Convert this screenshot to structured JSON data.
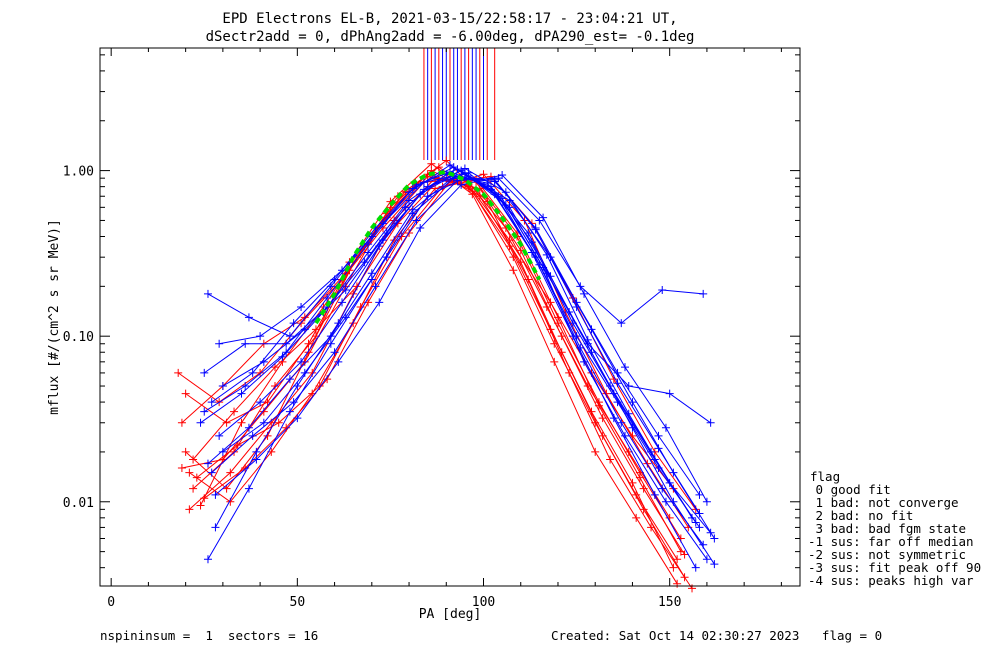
{
  "title_line1": "EPD Electrons EL-B, 2021-03-15/22:58:17 - 23:04:21 UT,",
  "title_line2": "dSectr2add = 0, dPhAng2add = -6.00deg, dPA290_est=  -0.1deg",
  "footer": {
    "left": "nspininsum =  1  sectors = 16",
    "right": "Created: Sat Oct 14 02:30:27 2023   flag = 0"
  },
  "legend": {
    "title": "flag",
    "items": [
      " 0 good fit",
      " 1 bad: not converge",
      " 2 bad: no fit",
      " 3 bad: bad fgm state",
      "-1 sus: far off median",
      "-2 sus: not symmetric",
      "-3 sus: fit peak off 90",
      "-4 sus: peaks high var"
    ]
  },
  "colors": {
    "red": "#ff0000",
    "blue": "#0000ff",
    "fit": "#00dd00",
    "axis": "#000000"
  },
  "chart_data": {
    "type": "line",
    "xlabel": "PA [deg]",
    "ylabel": "mflux [#/(cm^2 s sr MeV)]",
    "xlim": [
      -3,
      185
    ],
    "ylim": [
      0.0031,
      5.5
    ],
    "y_log": true,
    "xticks": [
      0,
      50,
      100,
      150
    ],
    "yticks": [
      {
        "value": 0.01,
        "label": "0.01"
      },
      {
        "value": 0.1,
        "label": "0.10"
      },
      {
        "value": 1.0,
        "label": "1.00"
      }
    ],
    "series": [
      {
        "color": "red",
        "x": [
          19,
          30,
          41,
          52,
          63,
          74,
          85,
          96,
          107,
          118,
          129,
          140,
          151
        ],
        "y": [
          0.016,
          0.018,
          0.035,
          0.07,
          0.2,
          0.55,
          0.95,
          0.8,
          0.35,
          0.11,
          0.035,
          0.013,
          0.004
        ]
      },
      {
        "color": "red",
        "x": [
          20,
          31,
          42,
          53,
          64,
          75,
          86,
          97,
          108,
          119,
          130,
          141,
          152
        ],
        "y": [
          0.045,
          0.03,
          0.04,
          0.09,
          0.25,
          0.6,
          1.0,
          0.75,
          0.3,
          0.09,
          0.03,
          0.011,
          0.0045
        ]
      },
      {
        "color": "red",
        "x": [
          21,
          32,
          43,
          54,
          65,
          76,
          87,
          98,
          109,
          120,
          131,
          142,
          153
        ],
        "y": [
          0.009,
          0.015,
          0.03,
          0.06,
          0.18,
          0.5,
          0.9,
          0.85,
          0.4,
          0.12,
          0.04,
          0.015,
          0.006
        ]
      },
      {
        "color": "red",
        "x": [
          22,
          33,
          44,
          55,
          66,
          77,
          88,
          99,
          110,
          121,
          132,
          143,
          154
        ],
        "y": [
          0.012,
          0.02,
          0.05,
          0.1,
          0.3,
          0.7,
          1.05,
          0.7,
          0.28,
          0.08,
          0.025,
          0.009,
          0.0035
        ]
      },
      {
        "color": "red",
        "x": [
          18,
          29,
          40,
          51,
          62,
          73,
          84,
          95,
          106,
          117,
          128,
          139,
          150
        ],
        "y": [
          0.06,
          0.04,
          0.06,
          0.12,
          0.22,
          0.45,
          0.85,
          0.9,
          0.45,
          0.15,
          0.05,
          0.02,
          0.008
        ]
      },
      {
        "color": "red",
        "x": [
          23,
          34,
          45,
          56,
          67,
          78,
          89,
          100,
          111,
          122,
          133,
          144,
          155
        ],
        "y": [
          0.014,
          0.022,
          0.03,
          0.05,
          0.15,
          0.4,
          0.8,
          0.95,
          0.5,
          0.14,
          0.045,
          0.017,
          0.007
        ]
      },
      {
        "color": "red",
        "x": [
          20,
          31,
          42,
          53,
          64,
          75,
          86,
          97,
          108,
          119,
          130,
          141,
          152
        ],
        "y": [
          0.02,
          0.012,
          0.025,
          0.08,
          0.28,
          0.65,
          1.1,
          0.72,
          0.25,
          0.07,
          0.02,
          0.008,
          0.0032
        ]
      },
      {
        "color": "red",
        "x": [
          24,
          35,
          46,
          57,
          68,
          79,
          90,
          101,
          112,
          123,
          134,
          145,
          156
        ],
        "y": [
          0.0095,
          0.03,
          0.07,
          0.15,
          0.35,
          0.75,
          1.15,
          0.65,
          0.22,
          0.06,
          0.018,
          0.007,
          0.003
        ]
      },
      {
        "color": "red",
        "x": [
          19,
          30,
          41,
          52,
          63,
          74,
          85,
          96,
          107,
          118,
          129,
          140,
          151
        ],
        "y": [
          0.03,
          0.05,
          0.09,
          0.13,
          0.24,
          0.52,
          0.92,
          0.82,
          0.38,
          0.16,
          0.06,
          0.025,
          0.012
        ]
      },
      {
        "color": "red",
        "x": [
          21,
          32,
          43,
          54,
          65,
          76,
          87,
          98,
          109,
          120,
          131,
          142,
          153
        ],
        "y": [
          0.015,
          0.01,
          0.02,
          0.045,
          0.12,
          0.38,
          0.78,
          0.88,
          0.42,
          0.13,
          0.038,
          0.014,
          0.005
        ]
      },
      {
        "color": "red",
        "x": [
          22,
          33,
          44,
          55,
          66,
          77,
          88,
          99,
          110,
          121,
          132,
          143,
          154
        ],
        "y": [
          0.018,
          0.035,
          0.065,
          0.11,
          0.2,
          0.48,
          0.88,
          0.78,
          0.33,
          0.1,
          0.032,
          0.012,
          0.0048
        ]
      },
      {
        "color": "red",
        "x": [
          25,
          36,
          47,
          58,
          69,
          80,
          91,
          102,
          113,
          124,
          135,
          146,
          157
        ],
        "y": [
          0.0105,
          0.016,
          0.028,
          0.055,
          0.16,
          0.42,
          0.86,
          0.92,
          0.48,
          0.17,
          0.055,
          0.02,
          0.009
        ]
      },
      {
        "color": "blue",
        "x": [
          26,
          37,
          48,
          59,
          70,
          81,
          92,
          103,
          114,
          125,
          136,
          147,
          158
        ],
        "y": [
          0.18,
          0.13,
          0.1,
          0.2,
          0.4,
          0.78,
          1.05,
          0.72,
          0.3,
          0.1,
          0.04,
          0.016,
          0.007
        ]
      },
      {
        "color": "blue",
        "x": [
          25,
          36,
          47,
          58,
          69,
          80,
          91,
          102,
          113,
          124,
          135,
          146,
          157
        ],
        "y": [
          0.06,
          0.09,
          0.09,
          0.15,
          0.32,
          0.66,
          0.98,
          0.8,
          0.37,
          0.12,
          0.045,
          0.018,
          0.0075
        ]
      },
      {
        "color": "blue",
        "x": [
          27,
          38,
          49,
          60,
          71,
          82,
          93,
          104,
          115,
          126,
          137,
          148,
          159
        ],
        "y": [
          0.04,
          0.06,
          0.12,
          0.22,
          0.45,
          0.82,
          1.02,
          0.7,
          0.27,
          0.085,
          0.03,
          0.012,
          0.0055
        ]
      },
      {
        "color": "blue",
        "x": [
          24,
          35,
          46,
          57,
          68,
          79,
          90,
          101,
          112,
          123,
          134,
          145,
          156
        ],
        "y": [
          0.03,
          0.045,
          0.075,
          0.14,
          0.28,
          0.6,
          0.95,
          0.84,
          0.42,
          0.14,
          0.05,
          0.02,
          0.008
        ]
      },
      {
        "color": "blue",
        "x": [
          28,
          39,
          50,
          61,
          72,
          83,
          94,
          105,
          116,
          127,
          138,
          149,
          160
        ],
        "y": [
          0.007,
          0.02,
          0.05,
          0.12,
          0.35,
          0.72,
          1.0,
          0.68,
          0.26,
          0.07,
          0.025,
          0.01,
          0.0045
        ]
      },
      {
        "color": "blue",
        "x": [
          26,
          37,
          48,
          59,
          70,
          81,
          92,
          103,
          114,
          125,
          136,
          147,
          158
        ],
        "y": [
          0.0045,
          0.012,
          0.035,
          0.09,
          0.22,
          0.55,
          0.9,
          0.86,
          0.45,
          0.16,
          0.06,
          0.025,
          0.011
        ]
      },
      {
        "color": "blue",
        "x": [
          29,
          40,
          51,
          62,
          73,
          84,
          95,
          106,
          117,
          128,
          139,
          150,
          161
        ],
        "y": [
          0.09,
          0.1,
          0.15,
          0.25,
          0.48,
          0.85,
          0.96,
          0.62,
          0.24,
          0.09,
          0.05,
          0.045,
          0.03
        ]
      },
      {
        "color": "blue",
        "x": [
          27,
          38,
          49,
          60,
          71,
          82,
          93,
          104,
          115,
          126,
          137,
          148,
          159
        ],
        "y": [
          0.015,
          0.025,
          0.04,
          0.08,
          0.2,
          0.5,
          0.87,
          0.9,
          0.5,
          0.2,
          0.12,
          0.19,
          0.18
        ]
      },
      {
        "color": "blue",
        "x": [
          30,
          41,
          52,
          63,
          74,
          85,
          96,
          107,
          118,
          129,
          140,
          151,
          162
        ],
        "y": [
          0.02,
          0.03,
          0.06,
          0.13,
          0.3,
          0.7,
          0.93,
          0.66,
          0.3,
          0.11,
          0.04,
          0.015,
          0.006
        ]
      },
      {
        "color": "blue",
        "x": [
          25,
          36,
          47,
          58,
          69,
          80,
          91,
          102,
          113,
          124,
          135,
          146,
          157
        ],
        "y": [
          0.035,
          0.05,
          0.08,
          0.17,
          0.36,
          0.74,
          1.08,
          0.77,
          0.32,
          0.1,
          0.032,
          0.011,
          0.004
        ]
      },
      {
        "color": "blue",
        "x": [
          28,
          39,
          50,
          61,
          72,
          83,
          94,
          105,
          116,
          127,
          138,
          149,
          160
        ],
        "y": [
          0.011,
          0.018,
          0.032,
          0.07,
          0.16,
          0.45,
          0.82,
          0.94,
          0.52,
          0.18,
          0.065,
          0.028,
          0.01
        ]
      },
      {
        "color": "blue",
        "x": [
          29,
          40,
          51,
          62,
          73,
          84,
          95,
          106,
          117,
          128,
          139,
          150,
          161
        ],
        "y": [
          0.025,
          0.04,
          0.07,
          0.16,
          0.38,
          0.77,
          1.03,
          0.74,
          0.31,
          0.095,
          0.034,
          0.013,
          0.0065
        ]
      },
      {
        "color": "blue",
        "x": [
          26,
          37,
          48,
          59,
          70,
          81,
          92,
          103,
          114,
          125,
          136,
          147,
          158
        ],
        "y": [
          0.017,
          0.028,
          0.055,
          0.1,
          0.24,
          0.58,
          0.92,
          0.88,
          0.44,
          0.15,
          0.052,
          0.021,
          0.0085
        ]
      },
      {
        "color": "blue",
        "x": [
          30,
          41,
          52,
          63,
          74,
          85,
          96,
          107,
          118,
          129,
          140,
          151,
          162
        ],
        "y": [
          0.05,
          0.07,
          0.11,
          0.19,
          0.42,
          0.8,
          0.97,
          0.6,
          0.23,
          0.08,
          0.028,
          0.01,
          0.0042
        ]
      }
    ],
    "fit": {
      "color": "green",
      "style": "dashed",
      "x": [
        55,
        60,
        65,
        70,
        75,
        80,
        85,
        90,
        95,
        100,
        105,
        110,
        115
      ],
      "y": [
        0.12,
        0.18,
        0.3,
        0.45,
        0.62,
        0.82,
        0.95,
        0.98,
        0.88,
        0.72,
        0.52,
        0.36,
        0.22
      ]
    },
    "vlines": [
      {
        "color": "red",
        "x": [
          84,
          86,
          88,
          91,
          94,
          96,
          99,
          101,
          103
        ]
      },
      {
        "color": "blue",
        "x": [
          85,
          87,
          89,
          90,
          92,
          93,
          95,
          97,
          98,
          100
        ]
      }
    ]
  }
}
